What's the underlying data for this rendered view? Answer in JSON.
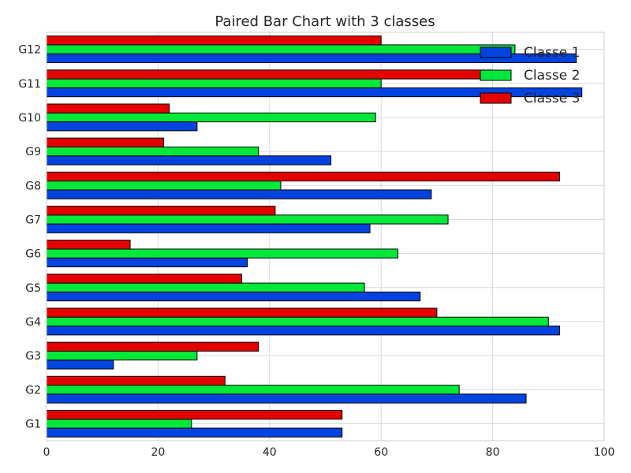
{
  "chart_data": {
    "type": "bar",
    "orientation": "horizontal",
    "title": "Paired Bar Chart with 3 classes",
    "xlabel": "",
    "ylabel": "",
    "categories": [
      "G1",
      "G2",
      "G3",
      "G4",
      "G5",
      "G6",
      "G7",
      "G8",
      "G9",
      "G10",
      "G11",
      "G12"
    ],
    "series": [
      {
        "name": "Classe 1",
        "color": "#0343df",
        "values": [
          53,
          86,
          12,
          92,
          67,
          36,
          58,
          69,
          51,
          27,
          96,
          95
        ]
      },
      {
        "name": "Classe 2",
        "color": "#00e83a",
        "values": [
          26,
          74,
          27,
          90,
          57,
          63,
          72,
          42,
          38,
          59,
          60,
          84
        ]
      },
      {
        "name": "Classe 3",
        "color": "#e50000",
        "values": [
          53,
          32,
          38,
          70,
          35,
          15,
          41,
          92,
          21,
          22,
          80,
          60
        ]
      }
    ],
    "xlim": [
      0,
      100
    ],
    "xticks": [
      0,
      20,
      40,
      60,
      80,
      100
    ],
    "grid": true,
    "legend_position": "top-right"
  }
}
